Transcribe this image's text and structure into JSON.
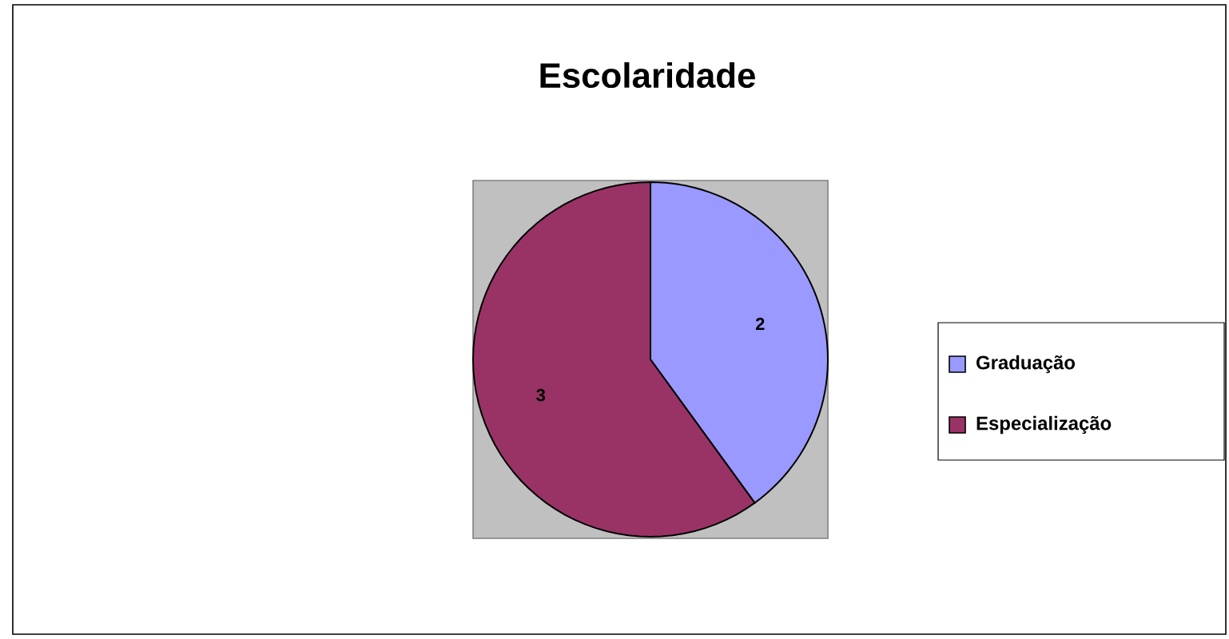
{
  "chart_data": {
    "type": "pie",
    "title": "Escolaridade",
    "categories": [
      "Graduação",
      "Especialização"
    ],
    "values": [
      2,
      3
    ],
    "colors": [
      "#9999ff",
      "#993366"
    ],
    "data_labels": true,
    "legend": "right"
  }
}
